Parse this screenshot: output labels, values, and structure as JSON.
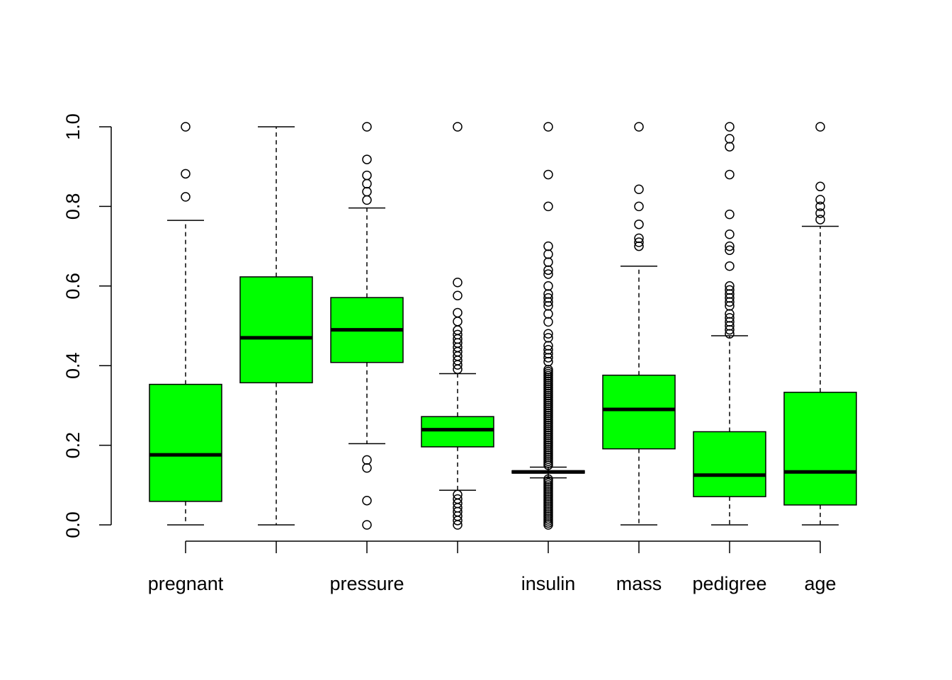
{
  "chart_data": {
    "type": "box",
    "title": "",
    "xlabel": "",
    "ylabel": "",
    "ylim": [
      0,
      1
    ],
    "y_ticks": [
      "0.0",
      "0.2",
      "0.4",
      "0.6",
      "0.8",
      "1.0"
    ],
    "x_tick_labels": [
      "pregnant",
      "",
      "pressure",
      "",
      "insulin",
      "mass",
      "pedigree",
      "age"
    ],
    "box_color": "#00ff00",
    "series": [
      {
        "q1": 0.059,
        "median": 0.176,
        "q3": 0.353,
        "whisker_low": 0.0,
        "whisker_high": 0.765,
        "outliers": [
          0.824,
          0.882,
          1.0
        ]
      },
      {
        "q1": 0.357,
        "median": 0.47,
        "q3": 0.623,
        "whisker_low": 0.0,
        "whisker_high": 1.0,
        "outliers": []
      },
      {
        "q1": 0.408,
        "median": 0.49,
        "q3": 0.571,
        "whisker_low": 0.204,
        "whisker_high": 0.796,
        "outliers": [
          0.0,
          0.061,
          0.143,
          0.163,
          0.816,
          0.837,
          0.857,
          0.878,
          0.918,
          1.0
        ]
      },
      {
        "q1": 0.196,
        "median": 0.239,
        "q3": 0.272,
        "whisker_low": 0.087,
        "whisker_high": 0.38,
        "outliers": [
          0.0,
          0.011,
          0.022,
          0.033,
          0.043,
          0.054,
          0.065,
          0.076,
          0.391,
          0.402,
          0.413,
          0.424,
          0.435,
          0.446,
          0.457,
          0.467,
          0.478,
          0.489,
          0.511,
          0.533,
          0.576,
          0.609,
          1.0
        ]
      },
      {
        "q1": 0.13,
        "median": 0.133,
        "q3": 0.136,
        "whisker_low": 0.118,
        "whisker_high": 0.145,
        "outliers": [
          0.0,
          0.005,
          0.01,
          0.015,
          0.02,
          0.025,
          0.03,
          0.035,
          0.04,
          0.045,
          0.05,
          0.055,
          0.06,
          0.065,
          0.07,
          0.075,
          0.08,
          0.085,
          0.09,
          0.095,
          0.1,
          0.105,
          0.11,
          0.115,
          0.15,
          0.155,
          0.16,
          0.165,
          0.17,
          0.175,
          0.18,
          0.185,
          0.19,
          0.195,
          0.2,
          0.205,
          0.21,
          0.215,
          0.22,
          0.225,
          0.23,
          0.235,
          0.24,
          0.245,
          0.25,
          0.255,
          0.26,
          0.265,
          0.27,
          0.275,
          0.28,
          0.285,
          0.29,
          0.295,
          0.3,
          0.305,
          0.31,
          0.315,
          0.32,
          0.325,
          0.33,
          0.335,
          0.34,
          0.345,
          0.35,
          0.355,
          0.36,
          0.365,
          0.37,
          0.375,
          0.38,
          0.385,
          0.39,
          0.41,
          0.42,
          0.43,
          0.44,
          0.45,
          0.47,
          0.48,
          0.51,
          0.53,
          0.55,
          0.56,
          0.57,
          0.58,
          0.6,
          0.63,
          0.64,
          0.66,
          0.68,
          0.7,
          0.8,
          0.88,
          1.0
        ]
      },
      {
        "q1": 0.191,
        "median": 0.29,
        "q3": 0.376,
        "whisker_low": 0.0,
        "whisker_high": 0.65,
        "outliers": [
          0.7,
          0.71,
          0.72,
          0.755,
          0.8,
          0.843,
          1.0
        ]
      },
      {
        "q1": 0.071,
        "median": 0.125,
        "q3": 0.234,
        "whisker_low": 0.0,
        "whisker_high": 0.475,
        "outliers": [
          0.48,
          0.49,
          0.5,
          0.51,
          0.52,
          0.53,
          0.55,
          0.56,
          0.57,
          0.58,
          0.59,
          0.6,
          0.65,
          0.69,
          0.7,
          0.73,
          0.78,
          0.88,
          0.95,
          0.97,
          1.0
        ]
      },
      {
        "q1": 0.05,
        "median": 0.133,
        "q3": 0.333,
        "whisker_low": 0.0,
        "whisker_high": 0.75,
        "outliers": [
          0.767,
          0.783,
          0.8,
          0.817,
          0.85,
          1.0
        ]
      }
    ]
  }
}
